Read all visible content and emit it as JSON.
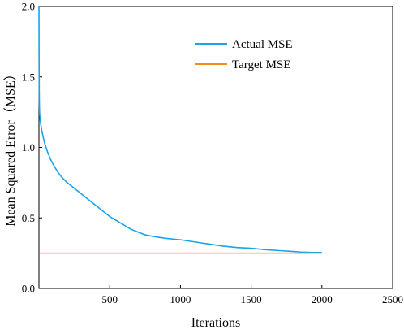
{
  "chart_data": {
    "type": "line",
    "xlabel": "Iterations",
    "ylabel": "Mean Squared Error（MSE）",
    "xlim": [
      0,
      2500
    ],
    "ylim": [
      0,
      2.0
    ],
    "x_ticks": [
      500,
      1000,
      1500,
      2000,
      2500
    ],
    "y_ticks": [
      0.0,
      0.5,
      1.0,
      1.5,
      2.0
    ],
    "x_tick_labels": [
      "500",
      "1000",
      "1500",
      "2000",
      "2500"
    ],
    "y_tick_labels": [
      "0.0",
      "0.5",
      "1.0",
      "1.5",
      "2.0"
    ],
    "grid": false,
    "legend_position": "top-right",
    "series": [
      {
        "name": "Actual MSE",
        "color": "#1aa3e8",
        "x": [
          0,
          1,
          2,
          3,
          5,
          8,
          12,
          20,
          40,
          60,
          80,
          100,
          130,
          160,
          200,
          250,
          300,
          350,
          400,
          450,
          500,
          550,
          600,
          650,
          700,
          750,
          800,
          900,
          1000,
          1100,
          1200,
          1300,
          1400,
          1500,
          1600,
          1700,
          1800,
          1850,
          1900,
          1950,
          2000
        ],
        "values": [
          2.0,
          1.6,
          1.4,
          1.3,
          1.24,
          1.2,
          1.17,
          1.12,
          1.03,
          0.97,
          0.92,
          0.88,
          0.83,
          0.79,
          0.75,
          0.71,
          0.67,
          0.63,
          0.59,
          0.55,
          0.51,
          0.48,
          0.45,
          0.42,
          0.4,
          0.38,
          0.37,
          0.355,
          0.345,
          0.33,
          0.315,
          0.3,
          0.29,
          0.285,
          0.275,
          0.268,
          0.262,
          0.258,
          0.256,
          0.255,
          0.255
        ]
      },
      {
        "name": "Target MSE",
        "color": "#f28c1e",
        "x": [
          0,
          2000
        ],
        "values": [
          0.25,
          0.25
        ]
      }
    ]
  }
}
